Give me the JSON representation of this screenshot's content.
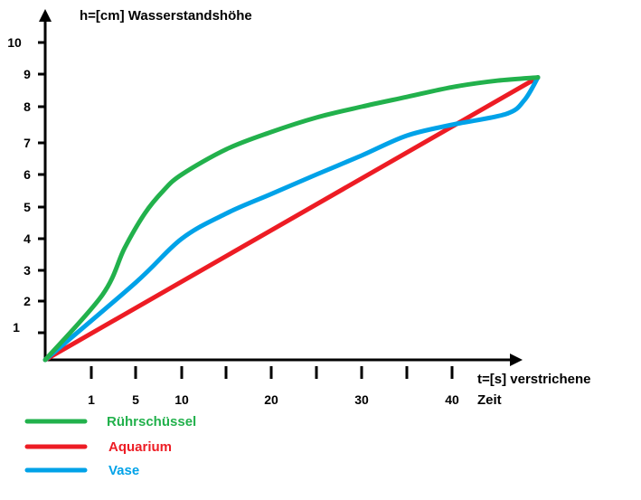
{
  "chart_data": {
    "type": "line",
    "title": "",
    "ylabel": "h=[cm] Wasserstandshöhe",
    "xlabel_line1": "t=[s] verstrichene",
    "xlabel_line2": "Zeit",
    "x_ticks": [
      1,
      5,
      10,
      20,
      30,
      40
    ],
    "y_ticks": [
      1,
      2,
      3,
      4,
      5,
      6,
      7,
      8,
      9,
      10
    ],
    "xlim": [
      0,
      50
    ],
    "ylim": [
      0,
      10
    ],
    "grid": false,
    "legend_position": "bottom-left",
    "series": [
      {
        "name": "Rührschüssel",
        "color": "#22b14c",
        "x": [
          0,
          2,
          4,
          6,
          8,
          10,
          15,
          20,
          25,
          30,
          35,
          40,
          45,
          49.5
        ],
        "y": [
          0,
          2.2,
          3.7,
          4.8,
          5.5,
          6.0,
          6.8,
          7.3,
          7.7,
          8.0,
          8.3,
          8.6,
          8.8,
          8.9
        ]
      },
      {
        "name": "Aquarium",
        "color": "#ed1c24",
        "x": [
          0,
          49.5
        ],
        "y": [
          0,
          8.9
        ]
      },
      {
        "name": "Vase",
        "color": "#00a2e8",
        "x": [
          0,
          5,
          10,
          15,
          20,
          25,
          30,
          35,
          40,
          46,
          48,
          49.5
        ],
        "y": [
          0,
          2.6,
          4.0,
          4.8,
          5.4,
          6.0,
          6.6,
          7.2,
          7.5,
          7.8,
          8.2,
          8.9
        ]
      }
    ]
  }
}
